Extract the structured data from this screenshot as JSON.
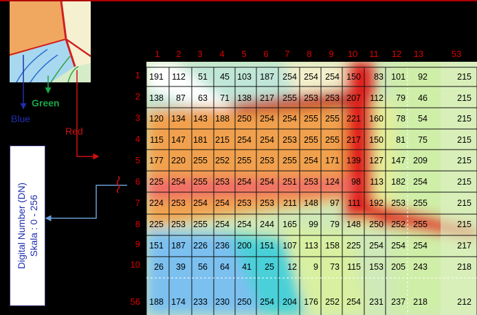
{
  "col_labels": [
    "1",
    "2",
    "3",
    "4",
    "5",
    "6",
    "7",
    "8",
    "9",
    "10",
    "11",
    "12",
    "13",
    "53"
  ],
  "row_labels": [
    "1",
    "2",
    "3",
    "4",
    "5",
    "6",
    "7",
    "8",
    "9",
    "10",
    "56"
  ],
  "grid": [
    [
      191,
      112,
      51,
      45,
      103,
      187,
      254,
      254,
      254,
      150,
      83,
      101,
      92,
      215
    ],
    [
      138,
      87,
      63,
      71,
      138,
      217,
      255,
      253,
      253,
      207,
      112,
      79,
      46,
      215
    ],
    [
      120,
      134,
      143,
      188,
      250,
      254,
      254,
      255,
      255,
      221,
      160,
      78,
      54,
      215
    ],
    [
      115,
      147,
      181,
      215,
      254,
      254,
      253,
      255,
      255,
      217,
      150,
      81,
      75,
      215
    ],
    [
      177,
      220,
      255,
      252,
      255,
      253,
      255,
      254,
      171,
      139,
      127,
      147,
      209,
      215
    ],
    [
      225,
      254,
      255,
      253,
      254,
      254,
      251,
      253,
      124,
      98,
      113,
      182,
      254,
      215
    ],
    [
      224,
      253,
      254,
      254,
      253,
      253,
      211,
      148,
      97,
      111,
      192,
      253,
      255,
      215
    ],
    [
      225,
      253,
      255,
      254,
      254,
      244,
      165,
      99,
      79,
      148,
      250,
      252,
      255,
      215
    ],
    [
      151,
      187,
      226,
      236,
      200,
      151,
      107,
      113,
      158,
      225,
      254,
      254,
      254,
      217
    ],
    [
      26,
      39,
      56,
      64,
      41,
      25,
      12,
      9,
      73,
      115,
      153,
      205,
      243,
      218
    ],
    [
      188,
      174,
      233,
      230,
      250,
      254,
      204,
      176,
      252,
      254,
      231,
      237,
      218,
      212
    ]
  ],
  "labels": {
    "blue": "Blue",
    "green": "Green",
    "red": "Red",
    "dn_line1": "Digital Number (DN)",
    "dn_line2": "Skala : 0 - 256"
  },
  "colors": {
    "grid_number": "#e00000",
    "blue": "#1f2fae",
    "green": "#1aa84a",
    "red": "#d01010",
    "connector": "#6aa0d8"
  }
}
